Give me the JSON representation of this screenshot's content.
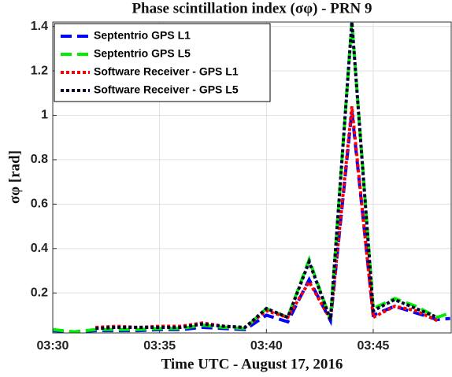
{
  "chart_data": {
    "type": "line",
    "title": "Phase scintillation index (σφ) - PRN 9",
    "x_label": "Time UTC - August 17, 2016",
    "y_label": "σφ [rad]",
    "x": [
      0,
      1,
      2,
      3,
      4,
      5,
      6,
      7,
      8,
      9,
      10,
      11,
      12,
      13,
      14,
      15,
      16,
      17,
      18,
      18.6
    ],
    "series": [
      {
        "name": "Septentrio GPS L1",
        "color": "#0000ff",
        "style": "dashed",
        "values": [
          0.03,
          0.025,
          0.03,
          0.03,
          0.03,
          0.035,
          0.035,
          0.045,
          0.04,
          0.035,
          0.1,
          0.07,
          0.26,
          0.075,
          1.02,
          0.1,
          0.14,
          0.11,
          0.08,
          0.085
        ]
      },
      {
        "name": "Septentrio GPS L5",
        "color": "#00ee00",
        "style": "dashed",
        "values": [
          0.035,
          0.025,
          0.035,
          0.035,
          0.035,
          0.04,
          0.04,
          0.055,
          0.045,
          0.04,
          0.13,
          0.09,
          0.35,
          0.08,
          1.42,
          0.13,
          0.175,
          0.14,
          0.09,
          0.11
        ]
      },
      {
        "name": "Software Receiver - GPS L1",
        "color": "#ff0000",
        "style": "dotted",
        "values": [
          null,
          null,
          0.045,
          0.05,
          0.045,
          0.05,
          0.05,
          0.065,
          0.05,
          0.045,
          0.12,
          0.09,
          0.25,
          0.08,
          1.04,
          0.09,
          0.14,
          0.12,
          0.075,
          null
        ]
      },
      {
        "name": "Software Receiver - GPS L5",
        "color": "#000033",
        "style": "dotted",
        "values": [
          null,
          null,
          0.04,
          0.045,
          0.045,
          0.045,
          0.045,
          0.06,
          0.05,
          0.045,
          0.13,
          0.09,
          0.34,
          0.08,
          1.42,
          0.12,
          0.17,
          0.13,
          0.09,
          null
        ]
      }
    ],
    "xlim": [
      0,
      18.65
    ],
    "xticks": [
      {
        "value": 0,
        "label": "03:30"
      },
      {
        "value": 5,
        "label": "03:35"
      },
      {
        "value": 10,
        "label": "03:40"
      },
      {
        "value": 15,
        "label": "03:45"
      }
    ],
    "ylim": [
      0.02,
      1.42
    ],
    "yticks": [
      0.2,
      0.4,
      0.6,
      0.8,
      1.0,
      1.2,
      1.4
    ],
    "grid": true,
    "legend": "top-left"
  }
}
